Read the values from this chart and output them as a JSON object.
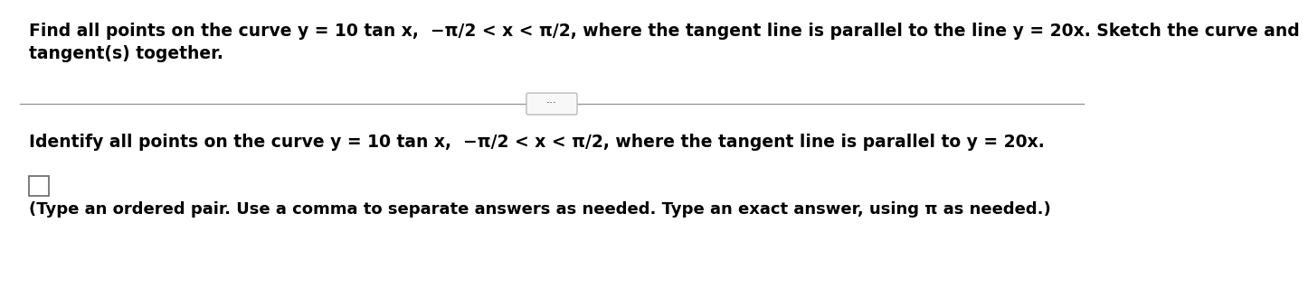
{
  "bg_color": "#ffffff",
  "line_color": "#999999",
  "text_color": "#000000",
  "title_line1": "Find all points on the curve y = 10 tan x,  −π/2 < x < π/2, where the tangent line is parallel to the line y = 20x. Sketch the curve and",
  "title_line2": "tangent(s) together.",
  "dots_label": "···",
  "question_line": "Identify all points on the curve y = 10 tan x,  −π/2 < x < π/2, where the tangent line is parallel to y = 20x.",
  "answer_hint": "(Type an ordered pair. Use a comma to separate answers as needed. Type an exact answer, using π as needed.)",
  "font_size_main": 13.5,
  "font_size_hint": 13.0
}
